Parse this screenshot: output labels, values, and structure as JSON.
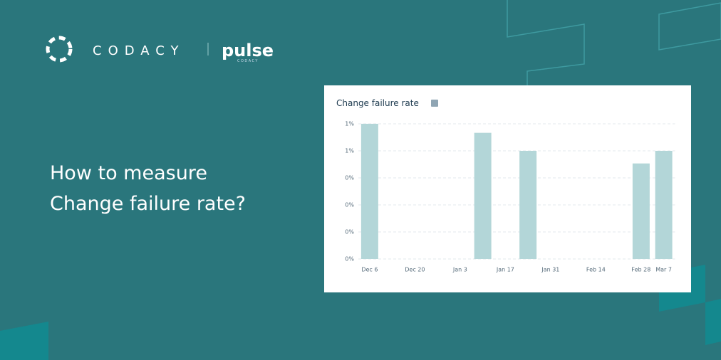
{
  "brand": {
    "logo": "CODACY",
    "product": "pulse",
    "product_sub": "CODACY"
  },
  "headline": [
    "How to measure",
    "Change failure rate?"
  ],
  "chart_data": {
    "type": "bar",
    "title": "Change failure rate",
    "categories": [
      "Dec 6",
      null,
      "Dec 20",
      null,
      "Jan 3",
      null,
      "Jan 17",
      null,
      "Jan 31",
      null,
      "Feb 14",
      null,
      "Feb 28",
      "Mar 7"
    ],
    "values": [
      0.75,
      0,
      0,
      0,
      0,
      0.7,
      0,
      0.6,
      0,
      0,
      0,
      0,
      0.53,
      0.6
    ],
    "color": "#b3d6d8",
    "ylim": [
      0,
      0.75
    ],
    "yticks": [
      {
        "value": 0,
        "label": "0%"
      },
      {
        "value": 0.15,
        "label": "0%"
      },
      {
        "value": 0.3,
        "label": "0%"
      },
      {
        "value": 0.45,
        "label": "0%"
      },
      {
        "value": 0.6,
        "label": "1%"
      },
      {
        "value": 0.75,
        "label": "1%"
      }
    ],
    "grid": true
  }
}
